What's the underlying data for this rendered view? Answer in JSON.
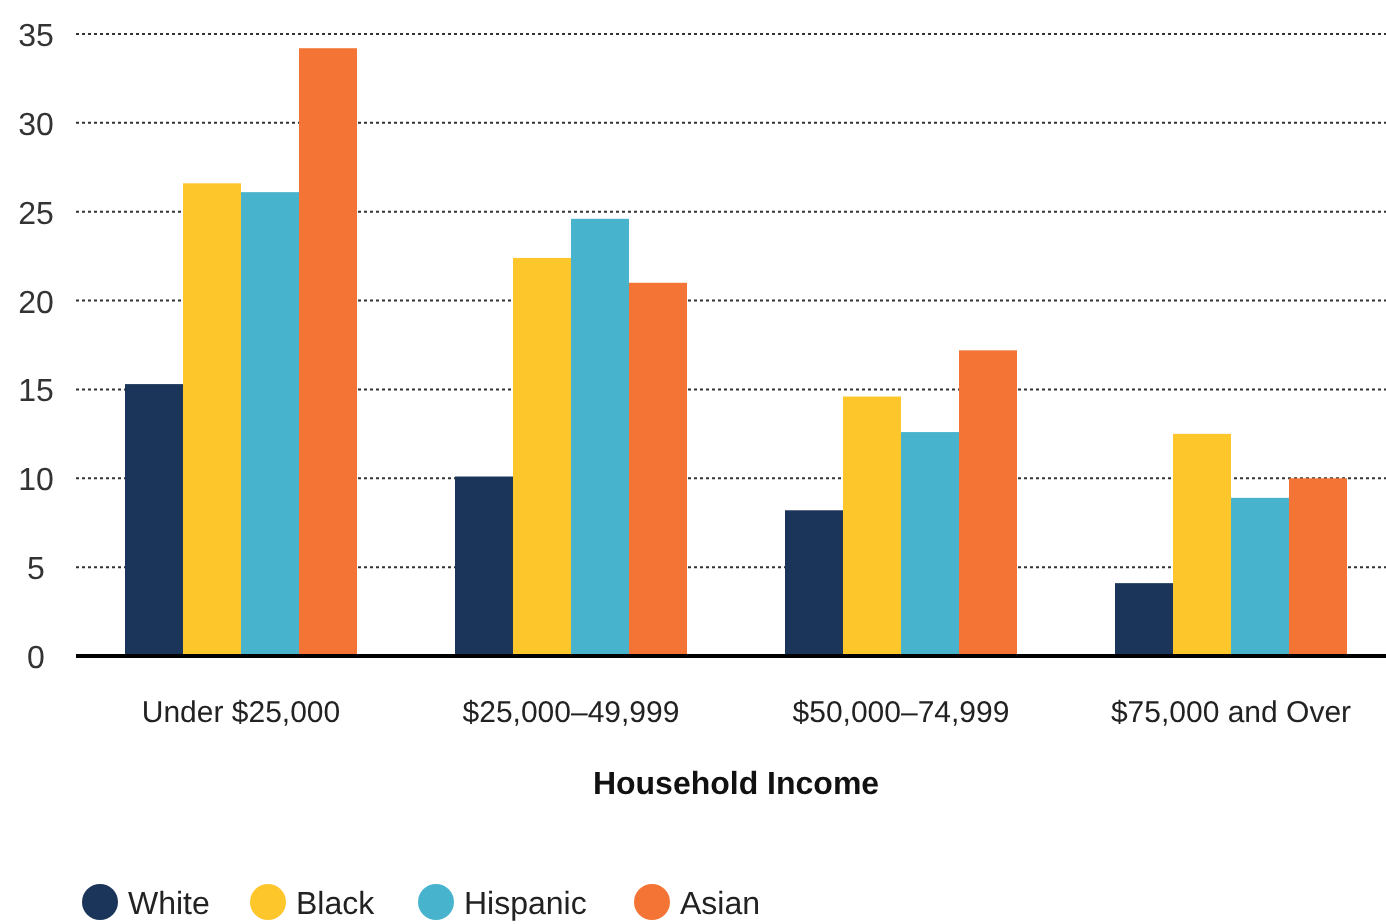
{
  "chart_data": {
    "type": "bar",
    "xlabel": "Household Income",
    "categories": [
      "Under $25,000",
      "$25,000–49,999",
      "$50,000–74,999",
      "$75,000 and Over"
    ],
    "series": [
      {
        "name": "White",
        "color": "#1b3459",
        "values": [
          15.3,
          10.1,
          8.2,
          4.1
        ]
      },
      {
        "name": "Black",
        "color": "#fdc62a",
        "values": [
          26.6,
          22.4,
          14.6,
          12.5
        ]
      },
      {
        "name": "Hispanic",
        "color": "#47b3cc",
        "values": [
          26.1,
          24.6,
          12.6,
          8.9
        ]
      },
      {
        "name": "Asian",
        "color": "#f47436",
        "values": [
          34.2,
          21.0,
          17.2,
          10.0
        ]
      }
    ],
    "ylim": [
      0,
      35
    ],
    "yticks": [
      0,
      5,
      10,
      15,
      20,
      25,
      30,
      35
    ],
    "grid": "y",
    "legend": "bottom left"
  }
}
